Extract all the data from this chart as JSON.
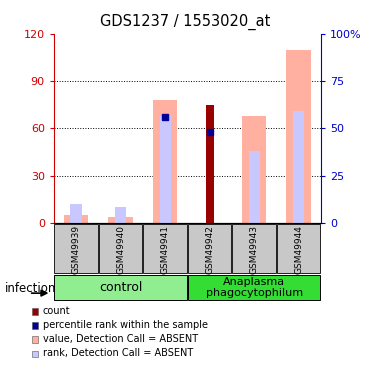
{
  "title": "GDS1237 / 1553020_at",
  "samples": [
    "GSM49939",
    "GSM49940",
    "GSM49941",
    "GSM49942",
    "GSM49943",
    "GSM49944"
  ],
  "ylim_left": [
    0,
    120
  ],
  "ylim_right": [
    0,
    100
  ],
  "yticks_left": [
    0,
    30,
    60,
    90,
    120
  ],
  "yticks_right": [
    0,
    25,
    50,
    75,
    100
  ],
  "yticklabels_left": [
    "0",
    "30",
    "60",
    "90",
    "120"
  ],
  "yticklabels_right": [
    "0",
    "25",
    "50",
    "75",
    "100%"
  ],
  "bar_value_absent": [
    5,
    4,
    78,
    0,
    68,
    110
  ],
  "bar_rank_absent": [
    12,
    10,
    68,
    0,
    46,
    71
  ],
  "bar_count": [
    0,
    0,
    0,
    75,
    0,
    0
  ],
  "bar_percentile": [
    0,
    0,
    67,
    58,
    0,
    0
  ],
  "color_value_absent": "#FFB0A0",
  "color_rank_absent": "#C8C8FF",
  "color_count": "#990000",
  "color_percentile": "#000099",
  "left_axis_color": "#CC0000",
  "right_axis_color": "#0000CC",
  "control_label": "control",
  "anaplasma_label": "Anaplasma\nphagocytophilum",
  "group_color_control": "#90EE90",
  "group_color_anaplasma": "#33DD33",
  "sample_box_color": "#C8C8C8",
  "infection_label": "infection",
  "legend": [
    {
      "label": "count",
      "color": "#990000"
    },
    {
      "label": "percentile rank within the sample",
      "color": "#000099"
    },
    {
      "label": "value, Detection Call = ABSENT",
      "color": "#FFB0A0"
    },
    {
      "label": "rank, Detection Call = ABSENT",
      "color": "#C8C8FF"
    }
  ]
}
